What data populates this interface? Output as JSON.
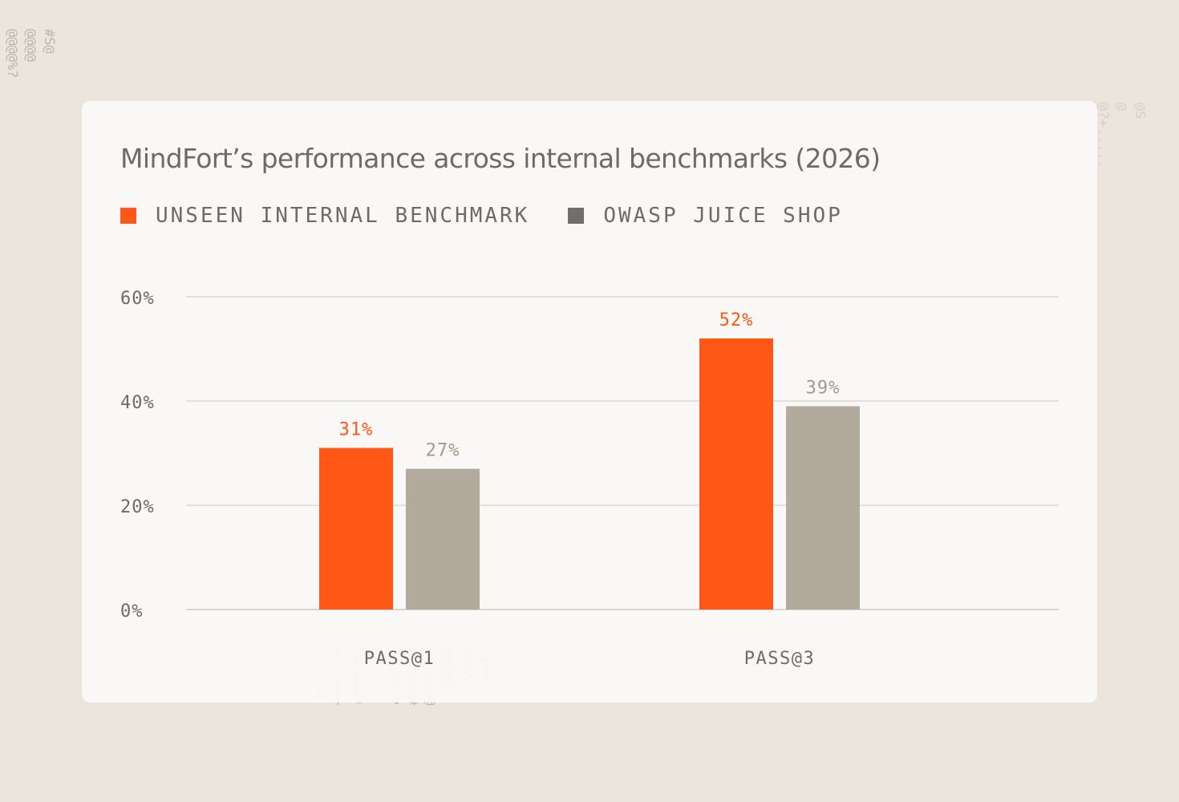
{
  "chart_data": {
    "type": "bar",
    "title": "MindFort’s performance across internal benchmarks (2026)",
    "categories": [
      "PASS@1",
      "PASS@3"
    ],
    "series": [
      {
        "name": "UNSEEN INTERNAL BENCHMARK",
        "values": [
          31,
          52
        ],
        "color": "#ff5715",
        "value_labels": [
          "31%",
          "52%"
        ],
        "label_color": "#ff5715"
      },
      {
        "name": "OWASP JUICE SHOP",
        "values": [
          27,
          39
        ],
        "color": "#b3aa9e",
        "value_labels": [
          "27%",
          "39%"
        ],
        "label_color": "#a29a8f"
      }
    ],
    "legend_swatch_colors": [
      "#ff5715",
      "#716e6b"
    ],
    "ylim": [
      0,
      60
    ],
    "yticks": [
      0,
      20,
      40,
      60
    ],
    "ytick_labels": [
      "0%",
      "20%",
      "40%",
      "60%"
    ],
    "xlabel": "",
    "ylabel": "",
    "grid": true,
    "legend_position": "top-left"
  }
}
